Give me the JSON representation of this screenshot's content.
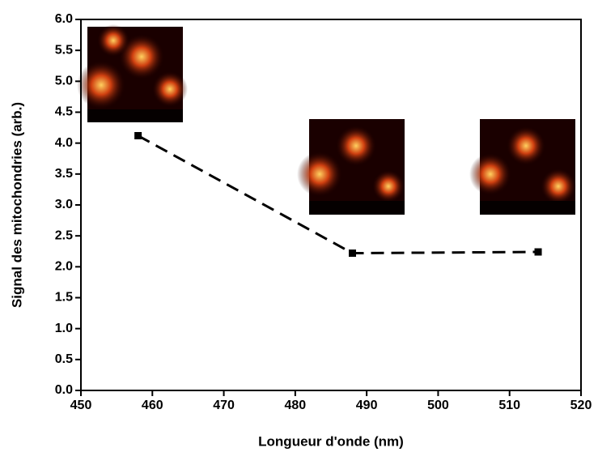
{
  "chart_data": {
    "type": "line",
    "x_label": "Longueur d'onde (nm)",
    "y_label": "Signal des mitochondries (arb.)",
    "x": [
      458,
      488,
      514
    ],
    "values": [
      4.12,
      2.22,
      2.24
    ],
    "color": "#000000",
    "line_style": "dashed",
    "marker": "square",
    "xlim": [
      450,
      520
    ],
    "xticks": [
      450,
      460,
      470,
      480,
      490,
      500,
      510,
      520
    ],
    "ylim": [
      0,
      6
    ],
    "yticks": [
      {
        "value": 0,
        "label": "0.0"
      },
      {
        "value": 0.5,
        "label": "0.5"
      },
      {
        "value": 1,
        "label": "1.0"
      },
      {
        "value": 1.5,
        "label": "1.5"
      },
      {
        "value": 2,
        "label": "2.0"
      },
      {
        "value": 2.5,
        "label": "2.5"
      },
      {
        "value": 3,
        "label": "3.0"
      },
      {
        "value": 3.5,
        "label": "3.5"
      },
      {
        "value": 4,
        "label": "4.0"
      },
      {
        "value": 4.5,
        "label": "4.5"
      },
      {
        "value": 5,
        "label": "5.0"
      },
      {
        "value": 5.5,
        "label": "5.5"
      },
      {
        "value": 6,
        "label": "6.0"
      }
    ],
    "grid": false
  }
}
